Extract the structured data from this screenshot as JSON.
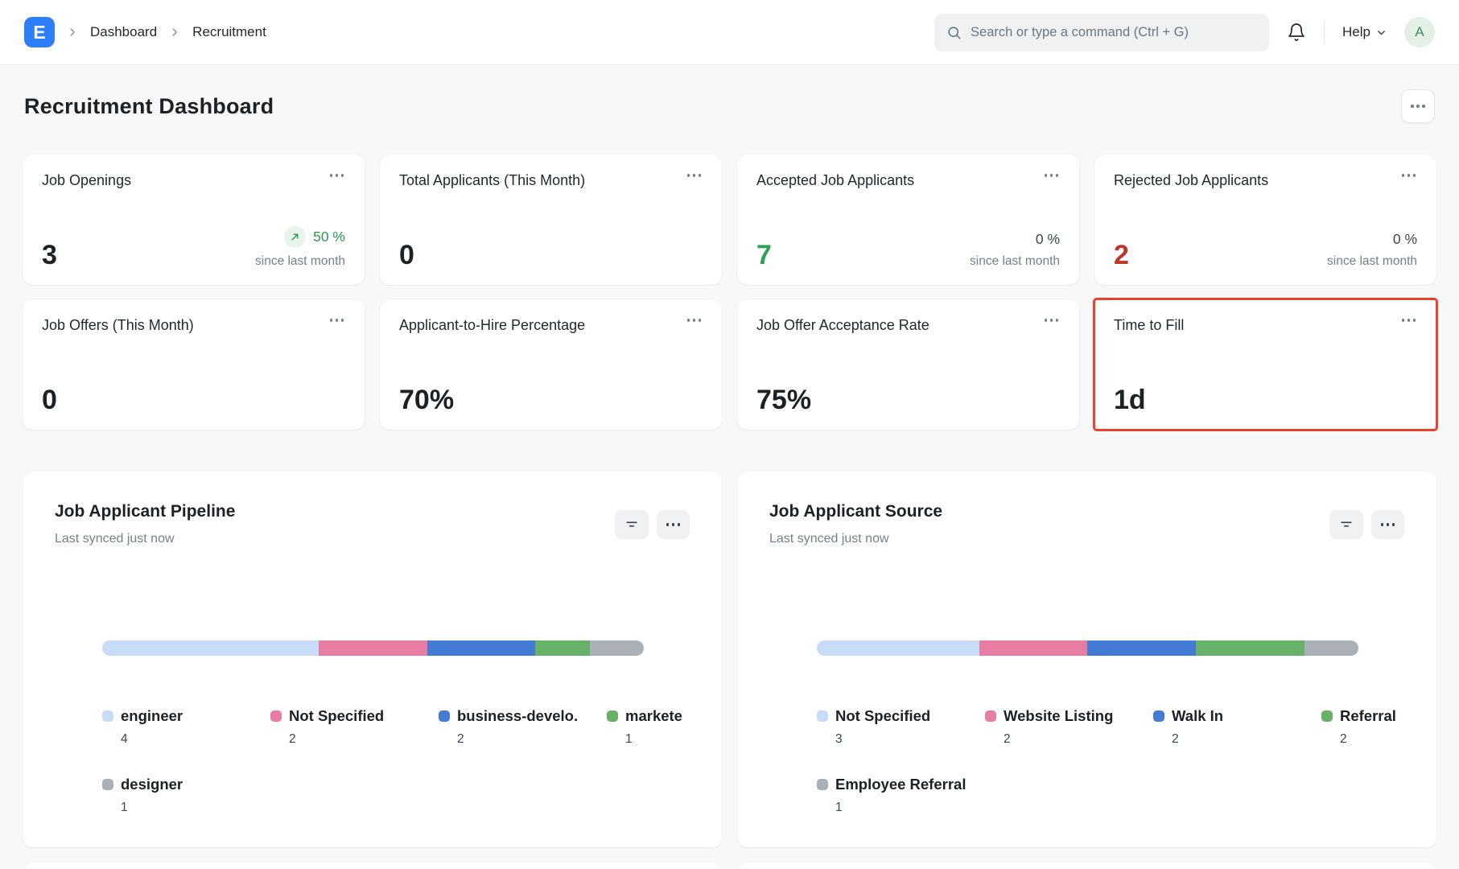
{
  "navbar": {
    "logo_letter": "E",
    "breadcrumbs": [
      "Dashboard",
      "Recruitment"
    ],
    "search": {
      "placeholder": "Search or type a command (Ctrl + G)"
    },
    "help_label": "Help",
    "avatar_letter": "A"
  },
  "page": {
    "title": "Recruitment Dashboard"
  },
  "colors": {
    "brand_blue": "#2d7ff9",
    "green": "#2ea052",
    "red": "#bf342c",
    "highlight_border": "#e8432e",
    "bar_palette": [
      "#c8dcf7",
      "#e87da4",
      "#447bd4",
      "#68b168",
      "#a9b0b8"
    ]
  },
  "number_cards": [
    {
      "title": "Job Openings",
      "value": "3",
      "change": "50 %",
      "change_direction": "up",
      "subtext": "since last month"
    },
    {
      "title": "Total Applicants (This Month)",
      "value": "0"
    },
    {
      "title": "Accepted Job Applicants",
      "value": "7",
      "value_color": "#2ea052",
      "change": "0 %",
      "subtext": "since last month"
    },
    {
      "title": "Rejected Job Applicants",
      "value": "2",
      "value_color": "#bf342c",
      "change": "0 %",
      "subtext": "since last month"
    },
    {
      "title": "Job Offers (This Month)",
      "value": "0"
    },
    {
      "title": "Applicant-to-Hire Percentage",
      "value": "70%"
    },
    {
      "title": "Job Offer Acceptance Rate",
      "value": "75%"
    },
    {
      "title": "Time to Fill",
      "value": "1d",
      "highlighted": true
    }
  ],
  "chart_data": [
    {
      "type": "bar",
      "subtype": "percentage-bar",
      "title": "Job Applicant Pipeline",
      "subtitle": "Last synced just now",
      "categories": [
        "engineer",
        "Not Specified",
        "business-develo.",
        "markete",
        "designer"
      ],
      "values": [
        4,
        2,
        2,
        1,
        1
      ],
      "colors": [
        "#c8dcf7",
        "#e87da4",
        "#447bd4",
        "#68b168",
        "#a9b0b8"
      ],
      "legend_position": "bottom"
    },
    {
      "type": "bar",
      "subtype": "percentage-bar",
      "title": "Job Applicant Source",
      "subtitle": "Last synced just now",
      "categories": [
        "Not Specified",
        "Website Listing",
        "Walk In",
        "Referral",
        "Employee Referral"
      ],
      "values": [
        3,
        2,
        2,
        2,
        1
      ],
      "colors": [
        "#c8dcf7",
        "#e87da4",
        "#447bd4",
        "#68b168",
        "#a9b0b8"
      ],
      "legend_position": "bottom"
    }
  ]
}
